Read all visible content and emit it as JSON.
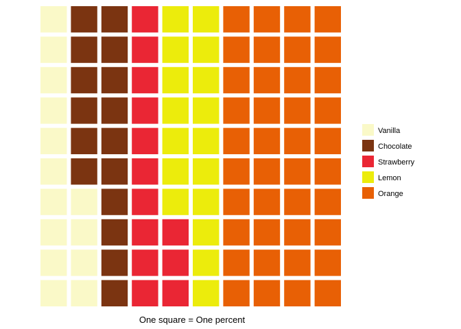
{
  "chart_data": {
    "type": "waffle",
    "rows": 10,
    "cols": 10,
    "series": [
      {
        "name": "Vanilla",
        "value": 14,
        "color": "#FAF9C8"
      },
      {
        "name": "Chocolate",
        "value": 16,
        "color": "#7B3411"
      },
      {
        "name": "Strawberry",
        "value": 13,
        "color": "#EA2634"
      },
      {
        "name": "Lemon",
        "value": 17,
        "color": "#ECEC0C"
      },
      {
        "name": "Orange",
        "value": 40,
        "color": "#E86005"
      }
    ],
    "xlabel": "One square = One percent",
    "legend_position": "right"
  }
}
